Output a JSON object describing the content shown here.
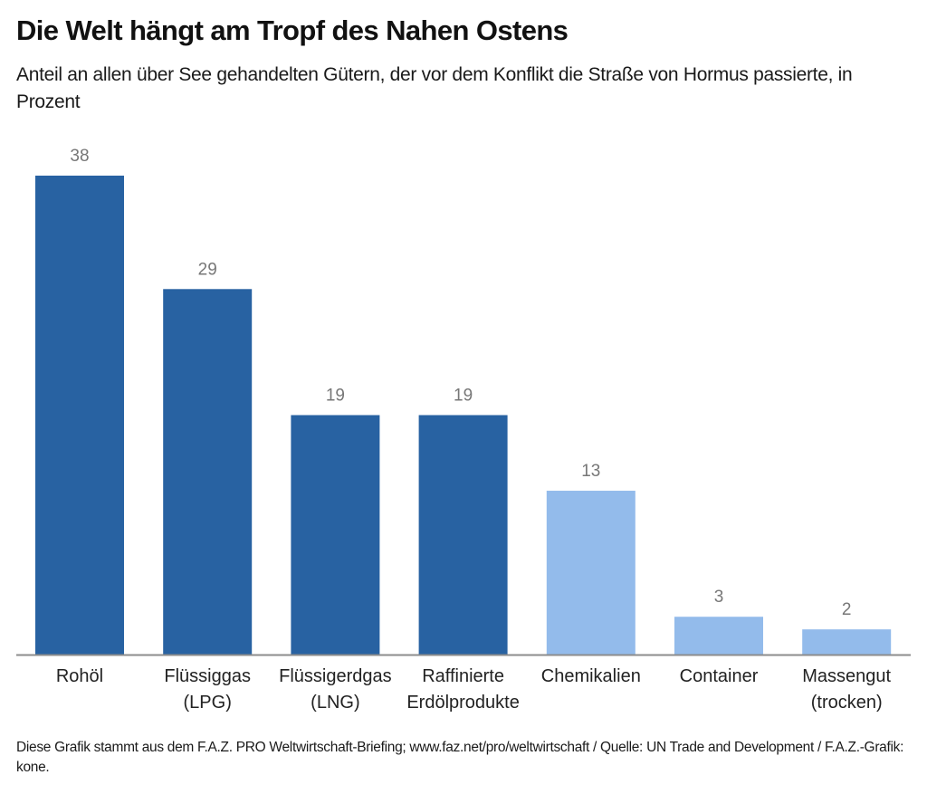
{
  "header": {
    "title": "Die Welt hängt am Tropf des Nahen Ostens",
    "subtitle": "Anteil an allen über See gehandelten Gütern, der vor dem Konflikt die Straße von Hormus passierte, in Prozent"
  },
  "footer": {
    "text": "Diese Grafik stammt aus dem F.A.Z. PRO Weltwirtschaft-Briefing; www.faz.net/pro/weltwirtschaft / Quelle: UN Trade and Development / F.A.Z.-Grafik: kone."
  },
  "colors": {
    "energy": "#2862a2",
    "other": "#93bbeb",
    "value_label": "#777777",
    "axis": "#8c8c8c",
    "category_label": "#222222"
  },
  "chart_data": {
    "type": "bar",
    "title": "Die Welt hängt am Tropf des Nahen Ostens",
    "subtitle": "Anteil an allen über See gehandelten Gütern, der vor dem Konflikt die Straße von Hormus passierte, in Prozent",
    "xlabel": "",
    "ylabel": "",
    "ylim": [
      0,
      38
    ],
    "grid": false,
    "data_labels": true,
    "categories": [
      [
        "Rohöl"
      ],
      [
        "Flüssiggas",
        "(LPG)"
      ],
      [
        "Flüssigerdgas",
        "(LNG)"
      ],
      [
        "Raffinierte",
        "Erdölprodukte"
      ],
      [
        "Chemikalien"
      ],
      [
        "Container"
      ],
      [
        "Massengut",
        "(trocken)"
      ]
    ],
    "values": [
      38,
      29,
      19,
      19,
      13,
      3,
      2
    ],
    "color_groups": [
      "energy",
      "energy",
      "energy",
      "energy",
      "other",
      "other",
      "other"
    ]
  }
}
